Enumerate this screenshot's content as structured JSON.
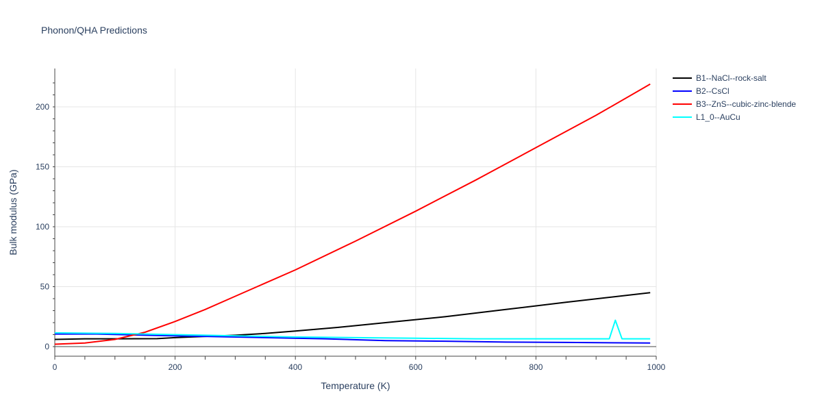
{
  "chart_data": {
    "type": "line",
    "title": "Phonon/QHA Predictions",
    "xlabel": "Temperature (K)",
    "ylabel": "Bulk modulus (GPa)",
    "xlim": [
      0,
      1000
    ],
    "ylim": [
      -8,
      232
    ],
    "xticks": [
      0,
      200,
      400,
      600,
      800,
      1000
    ],
    "yticks": [
      0,
      50,
      100,
      150,
      200
    ],
    "grid": true,
    "legend_position": "top-right",
    "series": [
      {
        "name": "B1--NaCl--rock-salt",
        "color": "#000000",
        "x": [
          0,
          50,
          100,
          170,
          200,
          250,
          300,
          350,
          400,
          470,
          550,
          650,
          750,
          850,
          990
        ],
        "y": [
          6,
          6.5,
          6.5,
          6.6,
          7.5,
          8.5,
          9.5,
          11,
          13,
          16,
          20,
          25,
          31,
          37,
          45
        ]
      },
      {
        "name": "B2--CsCl",
        "color": "#0000ff",
        "x": [
          0,
          70,
          150,
          250,
          350,
          450,
          550,
          650,
          750,
          850,
          990
        ],
        "y": [
          10.5,
          10.5,
          9.5,
          8.5,
          7.5,
          6.5,
          5,
          4.5,
          3.8,
          3.5,
          3
        ]
      },
      {
        "name": "B3--ZnS--cubic-zinc-blende",
        "color": "#ff0000",
        "x": [
          0,
          50,
          100,
          150,
          200,
          250,
          300,
          400,
          500,
          600,
          700,
          800,
          900,
          990
        ],
        "y": [
          2,
          3,
          6,
          12,
          21,
          31,
          42,
          64,
          88,
          113,
          139,
          166,
          193,
          219
        ]
      },
      {
        "name": "L1_0--AuCu",
        "color": "#00ffff",
        "x": [
          0,
          100,
          200,
          300,
          400,
          500,
          600,
          700,
          800,
          900,
          922,
          932,
          943,
          990
        ],
        "y": [
          11.5,
          11,
          10,
          9,
          8,
          7.5,
          7,
          6.5,
          6.5,
          6.5,
          6.5,
          22,
          6.5,
          6.5
        ]
      }
    ]
  }
}
